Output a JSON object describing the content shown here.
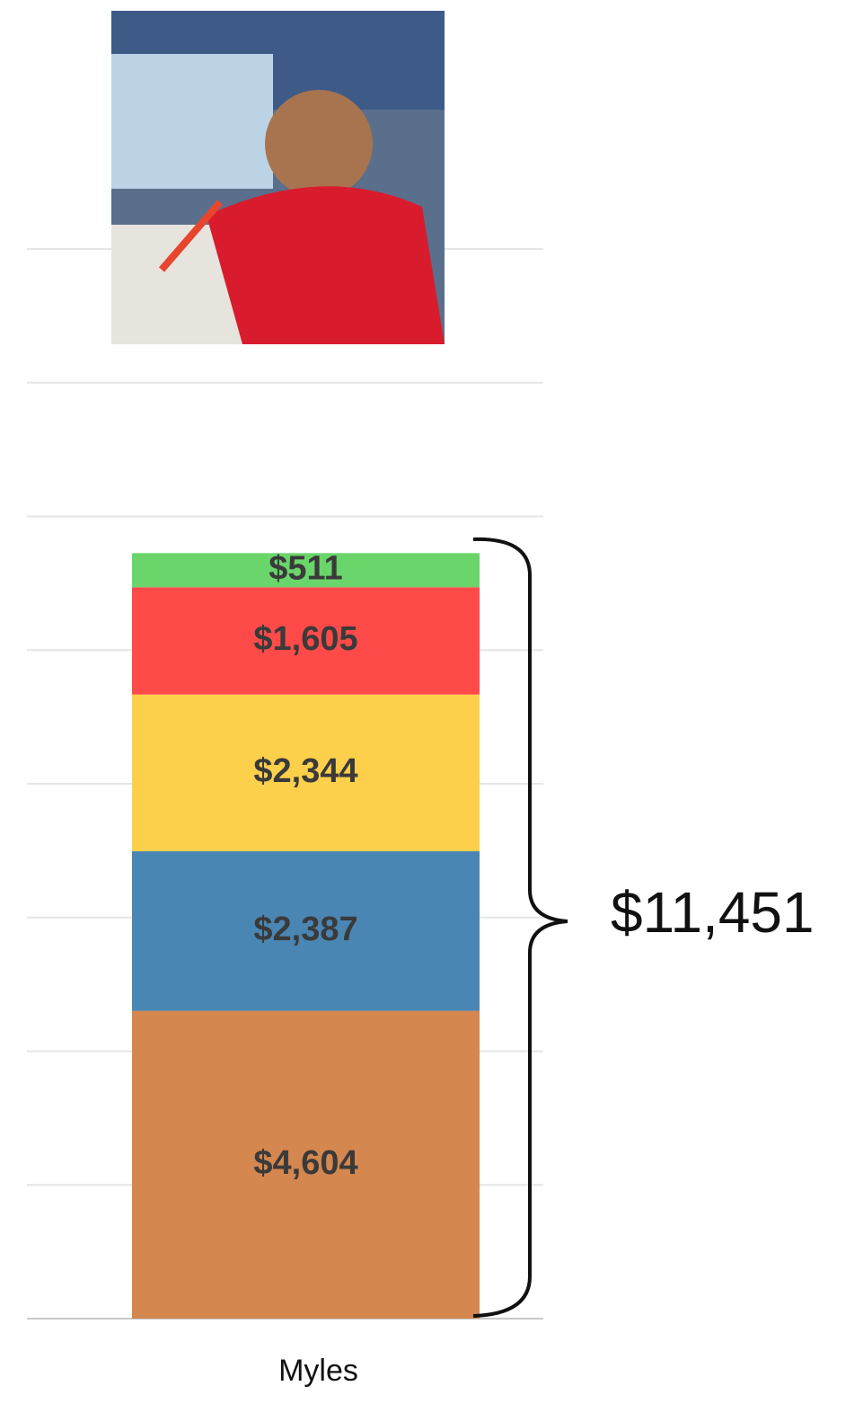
{
  "chart_data": {
    "type": "stacked_bar",
    "categories": [
      "Myles"
    ],
    "series": [
      {
        "name": null,
        "color": "#d4874e",
        "values": [
          4604
        ],
        "value_labels": [
          "$4,604"
        ]
      },
      {
        "name": null,
        "color": "#4a86b4",
        "values": [
          2387
        ],
        "value_labels": [
          "$2,387"
        ]
      },
      {
        "name": null,
        "color": "#fdd04b",
        "values": [
          2344
        ],
        "value_labels": [
          "$2,344"
        ]
      },
      {
        "name": null,
        "color": "#ff4a4a",
        "values": [
          1605
        ],
        "value_labels": [
          "$1,605"
        ]
      },
      {
        "name": null,
        "color": "#6ad56a",
        "values": [
          511
        ],
        "value_labels": [
          "$511"
        ]
      }
    ],
    "total": {
      "value": 11451,
      "label": "$11,451"
    },
    "ylim": [
      0,
      16000
    ],
    "yticks": [
      0,
      2000,
      4000,
      6000,
      8000,
      10000,
      12000,
      14000,
      16000
    ],
    "grid": true
  }
}
